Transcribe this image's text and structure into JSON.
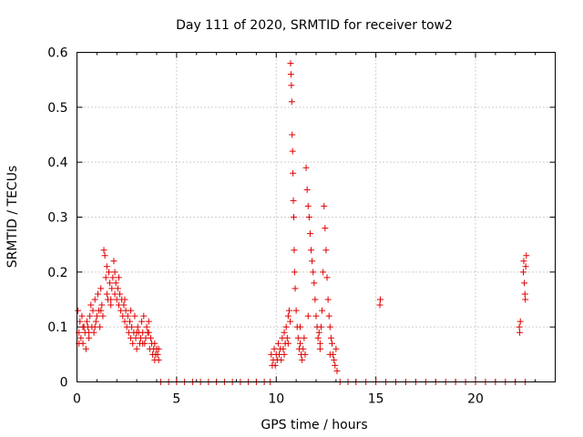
{
  "chart_data": {
    "type": "scatter",
    "title": "Day 111 of 2020, SRMTID for receiver tow2",
    "xlabel": "GPS time / hours",
    "ylabel": "SRMTID / TECUs",
    "xlim": [
      0,
      24
    ],
    "ylim": [
      0,
      0.6
    ],
    "xticks": [
      0,
      5,
      10,
      15,
      20
    ],
    "yticks": [
      0,
      0.1,
      0.2,
      0.3,
      0.4,
      0.5,
      0.6
    ],
    "xtick_labels": [
      "0",
      "5",
      "10",
      "15",
      "20"
    ],
    "ytick_labels": [
      "0",
      "0.1",
      "0.2",
      "0.3",
      "0.4",
      "0.5",
      "0.6"
    ],
    "grid": true,
    "marker": "+",
    "series": [
      {
        "name": "SRMTID",
        "color": "#e00000",
        "points": [
          [
            0.05,
            0.13
          ],
          [
            0.1,
            0.09
          ],
          [
            0.15,
            0.11
          ],
          [
            0.2,
            0.08
          ],
          [
            0.25,
            0.12
          ],
          [
            0.3,
            0.07
          ],
          [
            0.35,
            0.1
          ],
          [
            0.4,
            0.09
          ],
          [
            0.45,
            0.06
          ],
          [
            0.5,
            0.11
          ],
          [
            0.55,
            0.1
          ],
          [
            0.6,
            0.08
          ],
          [
            0.65,
            0.12
          ],
          [
            0.7,
            0.14
          ],
          [
            0.75,
            0.1
          ],
          [
            0.8,
            0.13
          ],
          [
            0.85,
            0.09
          ],
          [
            0.9,
            0.15
          ],
          [
            0.95,
            0.11
          ],
          [
            1.0,
            0.12
          ],
          [
            1.05,
            0.16
          ],
          [
            1.1,
            0.13
          ],
          [
            1.15,
            0.1
          ],
          [
            1.2,
            0.17
          ],
          [
            1.25,
            0.14
          ],
          [
            1.3,
            0.12
          ],
          [
            1.35,
            0.24
          ],
          [
            1.4,
            0.23
          ],
          [
            1.45,
            0.19
          ],
          [
            1.5,
            0.16
          ],
          [
            1.55,
            0.15
          ],
          [
            1.6,
            0.2
          ],
          [
            1.65,
            0.18
          ],
          [
            1.7,
            0.14
          ],
          [
            1.75,
            0.17
          ],
          [
            1.8,
            0.19
          ],
          [
            1.85,
            0.22
          ],
          [
            1.9,
            0.16
          ],
          [
            1.95,
            0.18
          ],
          [
            2.0,
            0.15
          ],
          [
            2.05,
            0.17
          ],
          [
            2.1,
            0.14
          ],
          [
            2.15,
            0.16
          ],
          [
            2.2,
            0.13
          ],
          [
            2.25,
            0.15
          ],
          [
            2.3,
            0.12
          ],
          [
            2.35,
            0.14
          ],
          [
            2.4,
            0.11
          ],
          [
            2.45,
            0.13
          ],
          [
            2.5,
            0.1
          ],
          [
            2.55,
            0.12
          ],
          [
            2.6,
            0.09
          ],
          [
            2.65,
            0.11
          ],
          [
            2.7,
            0.08
          ],
          [
            2.75,
            0.1
          ],
          [
            2.8,
            0.07
          ],
          [
            2.85,
            0.09
          ],
          [
            2.9,
            0.12
          ],
          [
            2.95,
            0.08
          ],
          [
            3.0,
            0.06
          ],
          [
            3.05,
            0.1
          ],
          [
            3.1,
            0.09
          ],
          [
            3.15,
            0.07
          ],
          [
            3.2,
            0.08
          ],
          [
            3.25,
            0.11
          ],
          [
            3.3,
            0.09
          ],
          [
            3.35,
            0.12
          ],
          [
            3.4,
            0.07
          ],
          [
            3.45,
            0.08
          ],
          [
            3.5,
            0.1
          ],
          [
            3.55,
            0.09
          ],
          [
            3.6,
            0.11
          ],
          [
            3.65,
            0.06
          ],
          [
            3.7,
            0.08
          ],
          [
            3.75,
            0.07
          ],
          [
            3.8,
            0.05
          ],
          [
            3.85,
            0.06
          ],
          [
            3.9,
            0.04
          ],
          [
            3.95,
            0.05
          ],
          [
            4.0,
            0.06
          ],
          [
            4.05,
            0.05
          ],
          [
            4.1,
            0.04
          ],
          [
            0.1,
            0.07
          ],
          [
            0.3,
            0.1
          ],
          [
            0.6,
            0.09
          ],
          [
            0.9,
            0.1
          ],
          [
            1.2,
            0.13
          ],
          [
            1.5,
            0.21
          ],
          [
            1.7,
            0.15
          ],
          [
            1.9,
            0.2
          ],
          [
            2.1,
            0.19
          ],
          [
            2.4,
            0.15
          ],
          [
            2.7,
            0.13
          ],
          [
            3.0,
            0.09
          ],
          [
            3.3,
            0.07
          ],
          [
            3.6,
            0.09
          ],
          [
            3.9,
            0.07
          ],
          [
            4.1,
            0.06
          ],
          [
            4.2,
            0.0
          ],
          [
            4.6,
            0.0
          ],
          [
            5.0,
            0.0
          ],
          [
            5.4,
            0.0
          ],
          [
            5.8,
            0.0
          ],
          [
            6.2,
            0.0
          ],
          [
            6.6,
            0.0
          ],
          [
            7.0,
            0.0
          ],
          [
            7.4,
            0.0
          ],
          [
            7.8,
            0.0
          ],
          [
            8.2,
            0.0
          ],
          [
            8.6,
            0.0
          ],
          [
            9.0,
            0.0
          ],
          [
            9.4,
            0.0
          ],
          [
            9.7,
            0.0
          ],
          [
            9.75,
            0.05
          ],
          [
            9.8,
            0.03
          ],
          [
            9.85,
            0.04
          ],
          [
            9.9,
            0.06
          ],
          [
            9.95,
            0.03
          ],
          [
            10.0,
            0.05
          ],
          [
            10.05,
            0.04
          ],
          [
            10.1,
            0.07
          ],
          [
            10.15,
            0.05
          ],
          [
            10.2,
            0.06
          ],
          [
            10.25,
            0.04
          ],
          [
            10.3,
            0.08
          ],
          [
            10.35,
            0.06
          ],
          [
            10.4,
            0.09
          ],
          [
            10.45,
            0.07
          ],
          [
            10.5,
            0.1
          ],
          [
            10.55,
            0.08
          ],
          [
            10.6,
            0.12
          ],
          [
            10.65,
            0.13
          ],
          [
            10.7,
            0.11
          ],
          [
            10.72,
            0.58
          ],
          [
            10.74,
            0.56
          ],
          [
            10.76,
            0.54
          ],
          [
            10.78,
            0.51
          ],
          [
            10.8,
            0.45
          ],
          [
            10.82,
            0.42
          ],
          [
            10.84,
            0.38
          ],
          [
            10.86,
            0.33
          ],
          [
            10.88,
            0.3
          ],
          [
            10.9,
            0.24
          ],
          [
            10.92,
            0.2
          ],
          [
            10.95,
            0.17
          ],
          [
            11.0,
            0.13
          ],
          [
            11.05,
            0.1
          ],
          [
            11.1,
            0.08
          ],
          [
            11.15,
            0.06
          ],
          [
            11.2,
            0.07
          ],
          [
            11.25,
            0.05
          ],
          [
            11.3,
            0.04
          ],
          [
            11.35,
            0.06
          ],
          [
            11.4,
            0.08
          ],
          [
            11.45,
            0.05
          ],
          [
            11.5,
            0.39
          ],
          [
            11.55,
            0.35
          ],
          [
            11.6,
            0.32
          ],
          [
            11.65,
            0.3
          ],
          [
            11.7,
            0.27
          ],
          [
            11.75,
            0.24
          ],
          [
            11.8,
            0.22
          ],
          [
            11.85,
            0.2
          ],
          [
            11.9,
            0.18
          ],
          [
            11.95,
            0.15
          ],
          [
            12.0,
            0.12
          ],
          [
            12.05,
            0.1
          ],
          [
            12.1,
            0.08
          ],
          [
            12.15,
            0.09
          ],
          [
            12.2,
            0.07
          ],
          [
            12.25,
            0.1
          ],
          [
            12.3,
            0.13
          ],
          [
            12.35,
            0.2
          ],
          [
            12.4,
            0.32
          ],
          [
            12.45,
            0.28
          ],
          [
            12.5,
            0.24
          ],
          [
            12.55,
            0.19
          ],
          [
            12.6,
            0.15
          ],
          [
            12.65,
            0.12
          ],
          [
            12.7,
            0.1
          ],
          [
            12.75,
            0.08
          ],
          [
            12.8,
            0.07
          ],
          [
            12.85,
            0.05
          ],
          [
            12.9,
            0.04
          ],
          [
            12.95,
            0.03
          ],
          [
            13.0,
            0.06
          ],
          [
            13.05,
            0.02
          ],
          [
            10.4,
            0.05
          ],
          [
            10.6,
            0.07
          ],
          [
            11.2,
            0.1
          ],
          [
            11.6,
            0.12
          ],
          [
            12.2,
            0.06
          ],
          [
            12.7,
            0.05
          ],
          [
            13.2,
            0.0
          ],
          [
            13.6,
            0.0
          ],
          [
            14.0,
            0.0
          ],
          [
            14.5,
            0.0
          ],
          [
            15.0,
            0.0
          ],
          [
            15.5,
            0.0
          ],
          [
            16.0,
            0.0
          ],
          [
            16.5,
            0.0
          ],
          [
            17.0,
            0.0
          ],
          [
            17.5,
            0.0
          ],
          [
            18.0,
            0.0
          ],
          [
            18.5,
            0.0
          ],
          [
            19.0,
            0.0
          ],
          [
            19.5,
            0.0
          ],
          [
            20.0,
            0.0
          ],
          [
            20.5,
            0.0
          ],
          [
            21.0,
            0.0
          ],
          [
            21.5,
            0.0
          ],
          [
            22.0,
            0.0
          ],
          [
            22.5,
            0.0
          ],
          [
            15.2,
            0.14
          ],
          [
            15.22,
            0.15
          ],
          [
            22.2,
            0.1
          ],
          [
            22.22,
            0.09
          ],
          [
            22.25,
            0.11
          ],
          [
            22.4,
            0.2
          ],
          [
            22.42,
            0.22
          ],
          [
            22.45,
            0.18
          ],
          [
            22.48,
            0.16
          ],
          [
            22.5,
            0.15
          ],
          [
            22.52,
            0.21
          ],
          [
            22.55,
            0.23
          ]
        ]
      }
    ]
  }
}
